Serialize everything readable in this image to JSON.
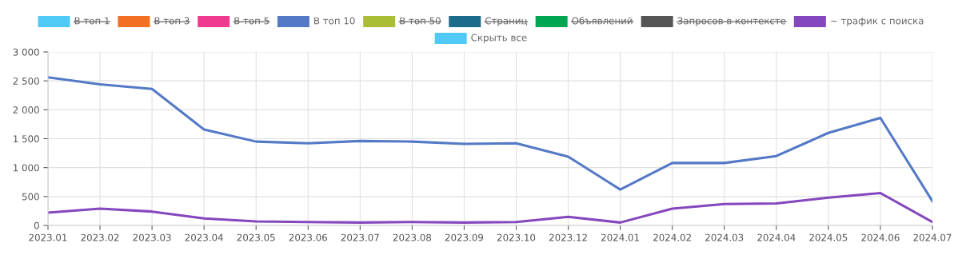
{
  "chart_data": {
    "type": "line",
    "categories": [
      "2023.01",
      "2023.02",
      "2023.03",
      "2023.04",
      "2023.05",
      "2023.06",
      "2023.07",
      "2023.08",
      "2023.09",
      "2023.10",
      "2023.12",
      "2024.01",
      "2024.02",
      "2024.03",
      "2024.04",
      "2024.05",
      "2024.06",
      "2024.07"
    ],
    "series": [
      {
        "name": "В топ 1",
        "color": "#4fc9f5",
        "values": [
          null,
          null,
          null,
          null,
          null,
          null,
          null,
          null,
          null,
          null,
          null,
          null,
          null,
          null,
          null,
          null,
          null,
          null
        ]
      },
      {
        "name": "В топ 3",
        "color": "#f27022",
        "values": [
          null,
          null,
          null,
          null,
          null,
          null,
          null,
          null,
          null,
          null,
          null,
          null,
          null,
          null,
          null,
          null,
          null,
          null
        ]
      },
      {
        "name": "В топ 5",
        "color": "#f03a8f",
        "values": [
          null,
          null,
          null,
          null,
          null,
          null,
          null,
          null,
          null,
          null,
          null,
          null,
          null,
          null,
          null,
          null,
          null,
          null
        ]
      },
      {
        "name": "В топ 10",
        "color": "#5479c6",
        "values": [
          2560,
          2440,
          2360,
          1660,
          1450,
          1420,
          1460,
          1450,
          1410,
          1420,
          1190,
          620,
          1080,
          1080,
          1200,
          1600,
          1860,
          420
        ]
      },
      {
        "name": "В топ 50",
        "color": "#aabd35",
        "values": [
          null,
          null,
          null,
          null,
          null,
          null,
          null,
          null,
          null,
          null,
          null,
          null,
          null,
          null,
          null,
          null,
          null,
          null
        ]
      },
      {
        "name": "Страниц",
        "color": "#1a6b8c",
        "values": [
          null,
          null,
          null,
          null,
          null,
          null,
          null,
          null,
          null,
          null,
          null,
          null,
          null,
          null,
          null,
          null,
          null,
          null
        ]
      },
      {
        "name": "Объявлений",
        "color": "#00a651",
        "values": [
          null,
          null,
          null,
          null,
          null,
          null,
          null,
          null,
          null,
          null,
          null,
          null,
          null,
          null,
          null,
          null,
          null,
          null
        ]
      },
      {
        "name": "Запросов в контексте",
        "color": "#555555",
        "values": [
          null,
          null,
          null,
          null,
          null,
          null,
          null,
          null,
          null,
          null,
          null,
          null,
          null,
          null,
          null,
          null,
          null,
          null
        ]
      },
      {
        "name": "~ трафик с поиска",
        "color": "#8447bd",
        "values": [
          220,
          290,
          240,
          120,
          70,
          60,
          50,
          60,
          50,
          60,
          150,
          50,
          290,
          370,
          380,
          480,
          560,
          60
        ]
      }
    ],
    "annotations": [
      "Скрыть все"
    ],
    "ylim": [
      0,
      3000
    ],
    "yticks": [
      {
        "value": 0,
        "label": "0"
      },
      {
        "value": 500,
        "label": "500"
      },
      {
        "value": 1000,
        "label": "1 000"
      },
      {
        "value": 1500,
        "label": "1 500"
      },
      {
        "value": 2000,
        "label": "2 000"
      },
      {
        "value": 2500,
        "label": "2 500"
      },
      {
        "value": 3000,
        "label": "3 000"
      }
    ],
    "grid": true,
    "legend": "top",
    "marker": "none",
    "line_style": "solid"
  }
}
